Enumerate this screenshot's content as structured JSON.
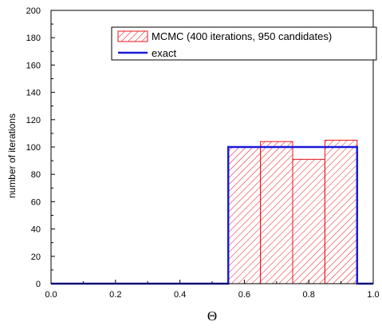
{
  "chart_data": {
    "type": "bar",
    "xlabel": "Θ",
    "ylabel": "number of iterations",
    "xlim": [
      0.0,
      1.0
    ],
    "ylim": [
      0,
      200
    ],
    "xticks": [
      "0.0",
      "0.2",
      "0.4",
      "0.6",
      "0.8",
      "1.0"
    ],
    "yticks": [
      "0",
      "20",
      "40",
      "60",
      "80",
      "100",
      "120",
      "140",
      "160",
      "180",
      "200"
    ],
    "grid": false,
    "legend_position": "top-right",
    "series": [
      {
        "name": "MCMC (400 iterations, 950 candidates)",
        "kind": "histogram",
        "color": "#e8141b",
        "bins": [
          {
            "x0": 0.55,
            "x1": 0.65,
            "value": 100
          },
          {
            "x0": 0.65,
            "x1": 0.75,
            "value": 104
          },
          {
            "x0": 0.75,
            "x1": 0.85,
            "value": 91
          },
          {
            "x0": 0.85,
            "x1": 0.95,
            "value": 105
          }
        ]
      },
      {
        "name": "exact",
        "kind": "step",
        "color": "#1a1adb",
        "points": [
          [
            0.0,
            0
          ],
          [
            0.55,
            0
          ],
          [
            0.55,
            100
          ],
          [
            0.95,
            100
          ],
          [
            0.95,
            0
          ],
          [
            1.0,
            0
          ]
        ]
      }
    ]
  }
}
